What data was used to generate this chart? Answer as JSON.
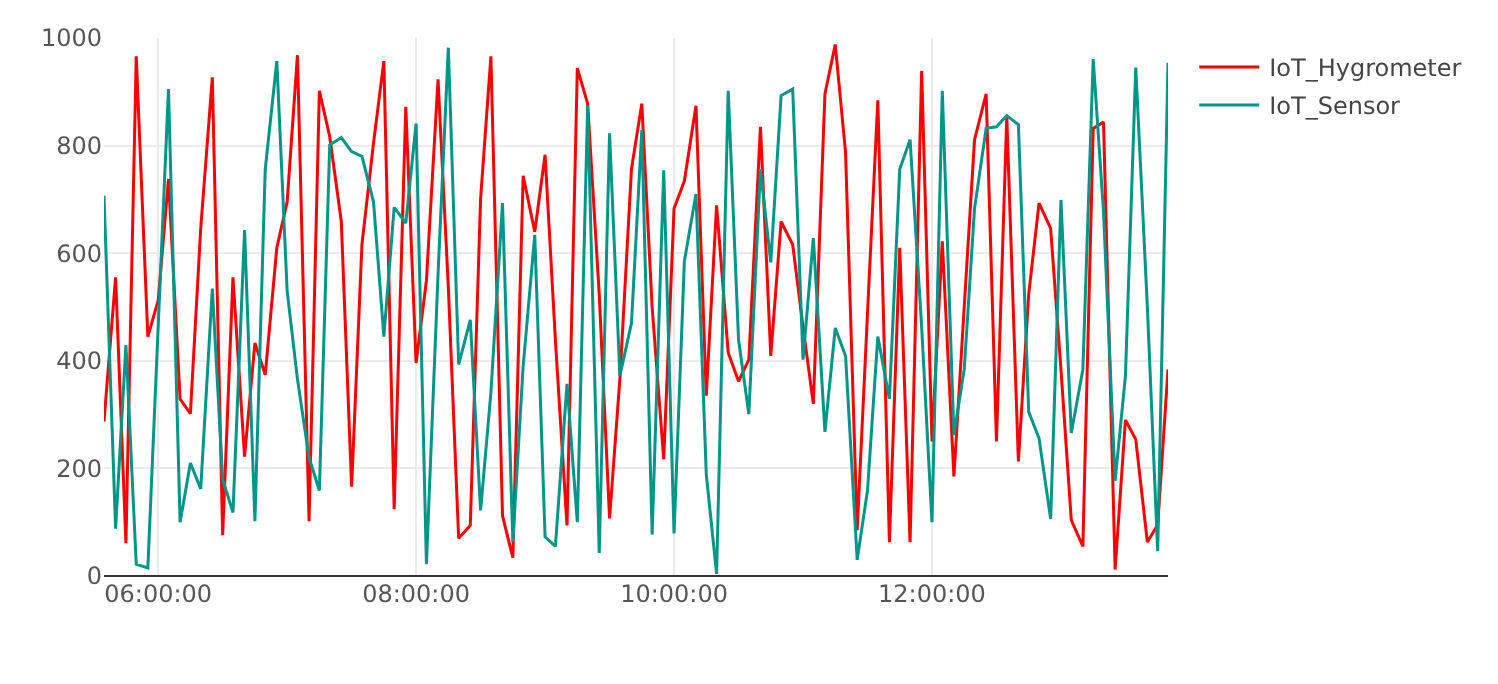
{
  "chart_data": {
    "type": "line",
    "x": [
      5.58,
      5.67,
      5.75,
      5.83,
      5.92,
      6,
      6.08,
      6.17,
      6.25,
      6.33,
      6.42,
      6.5,
      6.58,
      6.67,
      6.75,
      6.83,
      6.92,
      7,
      7.08,
      7.17,
      7.25,
      7.33,
      7.42,
      7.5,
      7.58,
      7.67,
      7.75,
      7.83,
      7.92,
      8,
      8.08,
      8.17,
      8.25,
      8.33,
      8.42,
      8.5,
      8.58,
      8.67,
      8.75,
      8.83,
      8.92,
      9,
      9.08,
      9.17,
      9.25,
      9.33,
      9.42,
      9.5,
      9.58,
      9.67,
      9.75,
      9.83,
      9.92,
      10,
      10.08,
      10.17,
      10.25,
      10.33,
      10.42,
      10.5,
      10.58,
      10.67,
      10.75,
      10.83,
      10.92,
      11,
      11.08,
      11.17,
      11.25,
      11.33,
      11.42,
      11.5,
      11.58,
      11.67,
      11.75,
      11.83,
      11.92,
      12,
      12.08,
      12.17,
      12.25,
      12.33,
      12.42,
      12.5,
      12.58,
      12.67,
      12.75,
      12.83,
      12.92,
      13,
      13.08,
      13.17,
      13.25,
      13.33,
      13.42,
      13.5,
      13.58,
      13.67,
      13.75,
      13.83
    ],
    "series": [
      {
        "name": "IoT_Hygrometer",
        "color": "#ff0000",
        "values": [
          287,
          555,
          61,
          966,
          445,
          512,
          738,
          329,
          302,
          646,
          927,
          76,
          555,
          222,
          433,
          374,
          610,
          695,
          968,
          102,
          902,
          817,
          659,
          166,
          616,
          805,
          957,
          124,
          872,
          396,
          549,
          923,
          537,
          70,
          94,
          701,
          966,
          112,
          34,
          744,
          640,
          783,
          439,
          94,
          944,
          878,
          524,
          107,
          366,
          756,
          878,
          500,
          217,
          683,
          734,
          874,
          335,
          689,
          415,
          362,
          402,
          835,
          409,
          659,
          616,
          463,
          320,
          896,
          988,
          787,
          85,
          488,
          884,
          63,
          610,
          63,
          939,
          250,
          622,
          185,
          500,
          811,
          896,
          250,
          854,
          213,
          524,
          693,
          646,
          384,
          104,
          55,
          832,
          844,
          12,
          290,
          254,
          63,
          95,
          384
        ]
      },
      {
        "name": "IoT_Sensor",
        "color": "#009688",
        "values": [
          707,
          88,
          429,
          22,
          15,
          463,
          905,
          100,
          210,
          162,
          534,
          180,
          118,
          643,
          102,
          756,
          957,
          530,
          366,
          220,
          159,
          801,
          815,
          789,
          780,
          695,
          445,
          685,
          656,
          841,
          22,
          561,
          982,
          393,
          476,
          122,
          341,
          693,
          63,
          390,
          634,
          73,
          55,
          357,
          100,
          874,
          43,
          823,
          372,
          470,
          829,
          77,
          754,
          79,
          585,
          710,
          189,
          4,
          902,
          439,
          301,
          756,
          583,
          893,
          905,
          402,
          628,
          268,
          461,
          409,
          30,
          159,
          445,
          329,
          756,
          811,
          463,
          100,
          902,
          262,
          384,
          683,
          832,
          835,
          856,
          839,
          305,
          256,
          106,
          699,
          266,
          384,
          961,
          677,
          177,
          372,
          945,
          500,
          46,
          954
        ]
      }
    ],
    "xlim": [
      5.58,
      13.83
    ],
    "xticks": [
      {
        "value": 6,
        "label": "06:00:00"
      },
      {
        "value": 8,
        "label": "08:00:00"
      },
      {
        "value": 10,
        "label": "10:00:00"
      },
      {
        "value": 12,
        "label": "12:00:00"
      }
    ],
    "ylim": [
      0,
      1000
    ],
    "yticks": [
      0,
      200,
      400,
      600,
      800,
      1000
    ],
    "grid": true,
    "legend": "top right",
    "marker": "none",
    "line_style": "solid"
  }
}
